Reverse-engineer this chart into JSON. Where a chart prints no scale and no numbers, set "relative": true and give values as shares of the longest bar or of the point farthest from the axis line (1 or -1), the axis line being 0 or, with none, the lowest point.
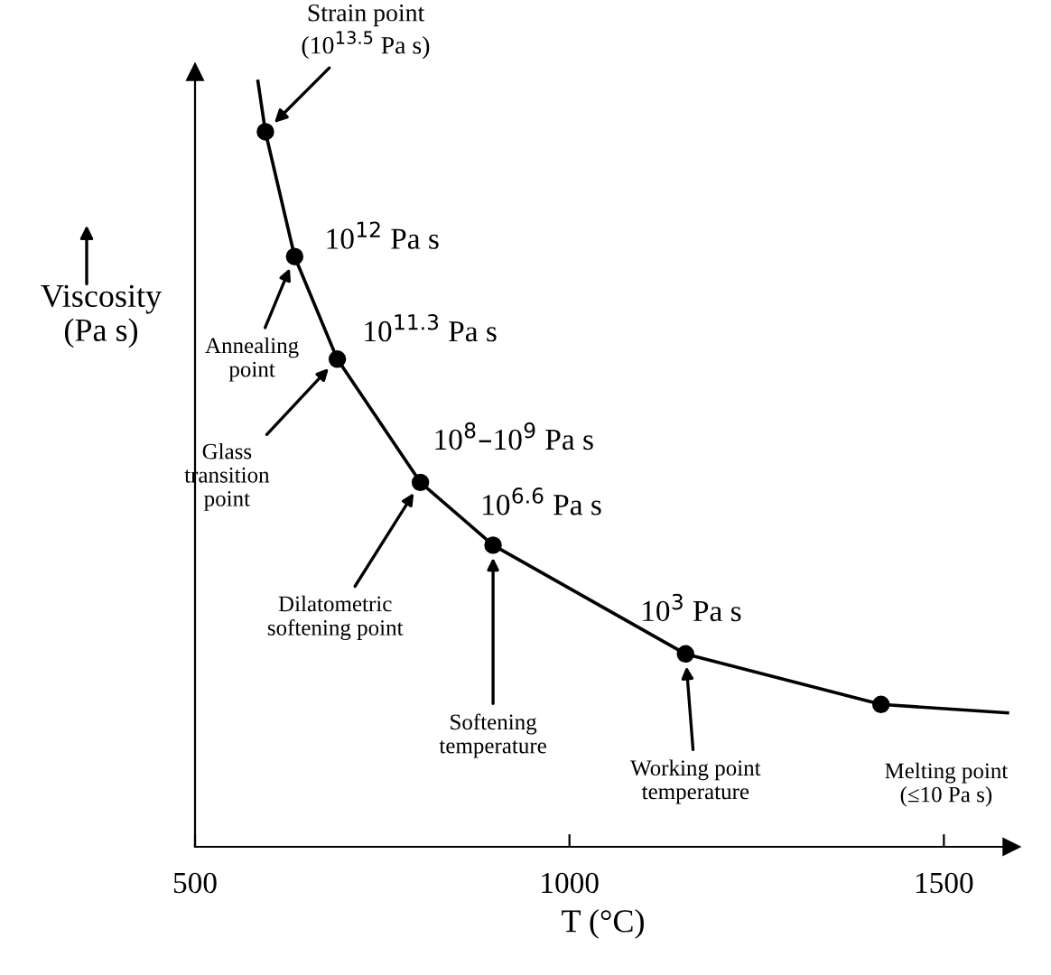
{
  "chart_data": {
    "type": "line",
    "relative": true,
    "xlabel": "T (°C)",
    "ylabel": "Viscosity\n(Pa s)",
    "xlim": [
      500,
      1590
    ],
    "xticks": [
      500,
      1000,
      1500
    ],
    "grid": false,
    "series": [
      {
        "color": "#000000",
        "marker": "none",
        "line_style": "solid",
        "x": [
          584,
          594,
          633,
          690,
          801,
          898,
          1155,
          1416,
          1585
        ],
        "values": [
          1,
          0.934,
          0.771,
          0.637,
          0.476,
          0.394,
          0.252,
          0.186,
          0.175
        ]
      },
      {
        "type": "scatter",
        "color": "#000000",
        "marker": "circle",
        "x": [
          594,
          633,
          690,
          801,
          898,
          1155,
          1416
        ],
        "values": [
          0.934,
          0.771,
          0.637,
          0.476,
          0.394,
          0.252,
          0.186
        ]
      }
    ],
    "annotations": [
      {
        "text": "Strain point\n(10$^{13.5}$ Pa s)",
        "x": 594,
        "y": 0.934
      },
      {
        "text": "10$^{12}$ Pa s",
        "x": 633,
        "y": 0.771
      },
      {
        "text": "Annealing\npoint",
        "x": 633,
        "y": 0.771
      },
      {
        "text": "10$^{11.3}$ Pa s",
        "x": 690,
        "y": 0.637
      },
      {
        "text": "Glass\ntransition\npoint",
        "x": 690,
        "y": 0.637
      },
      {
        "text": "10$^{8}$–10$^{9}$ Pa s",
        "x": 801,
        "y": 0.476
      },
      {
        "text": "Dilatometric\nsoftening point",
        "x": 801,
        "y": 0.476
      },
      {
        "text": "10$^{6.6}$ Pa s",
        "x": 898,
        "y": 0.394
      },
      {
        "text": "Softening\ntemperature",
        "x": 898,
        "y": 0.394
      },
      {
        "text": "10$^{3}$ Pa s",
        "x": 1155,
        "y": 0.252
      },
      {
        "text": "Working point\ntemperature",
        "x": 1155,
        "y": 0.252
      },
      {
        "text": "Melting point\n(≤10 Pa s)",
        "x": 1416,
        "y": 0.186
      }
    ]
  }
}
